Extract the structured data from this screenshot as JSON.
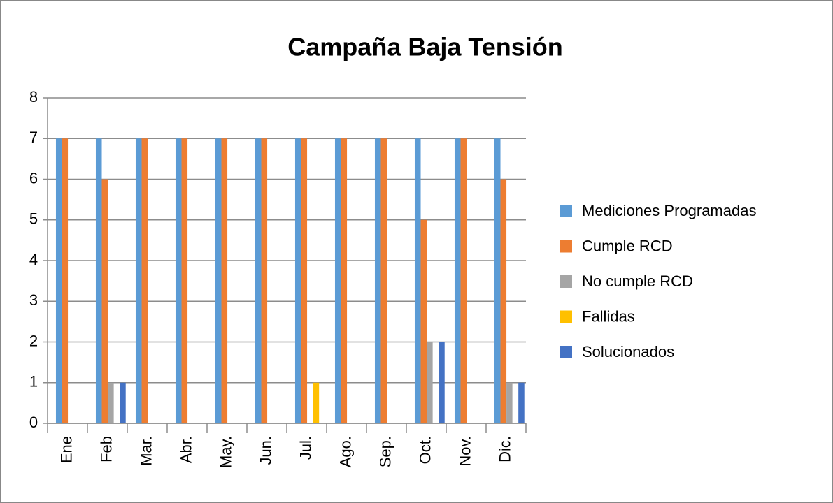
{
  "chart_data": {
    "type": "bar",
    "title": "Campaña Baja Tensión",
    "categories": [
      "Ene",
      "Feb",
      "Mar.",
      "Abr.",
      "May.",
      "Jun.",
      "Jul.",
      "Ago.",
      "Sep.",
      "Oct.",
      "Nov.",
      "Dic."
    ],
    "series": [
      {
        "name": "Mediciones Programadas",
        "color": "#5b9bd5",
        "values": [
          7,
          7,
          7,
          7,
          7,
          7,
          7,
          7,
          7,
          7,
          7,
          7
        ]
      },
      {
        "name": "Cumple RCD",
        "color": "#ed7d31",
        "values": [
          7,
          6,
          7,
          7,
          7,
          7,
          7,
          7,
          7,
          5,
          7,
          6
        ]
      },
      {
        "name": "No cumple RCD",
        "color": "#a5a5a5",
        "values": [
          0,
          1,
          0,
          0,
          0,
          0,
          0,
          0,
          0,
          2,
          0,
          1
        ]
      },
      {
        "name": "Fallidas",
        "color": "#ffc000",
        "values": [
          0,
          0,
          0,
          0,
          0,
          0,
          1,
          0,
          0,
          0,
          0,
          0
        ]
      },
      {
        "name": "Solucionados",
        "color": "#4472c4",
        "values": [
          0,
          1,
          0,
          0,
          0,
          0,
          0,
          0,
          0,
          2,
          0,
          1
        ]
      }
    ],
    "ylim": [
      0,
      8
    ],
    "yticks": [
      0,
      1,
      2,
      3,
      4,
      5,
      6,
      7,
      8
    ],
    "grid": true,
    "legend": "right"
  }
}
